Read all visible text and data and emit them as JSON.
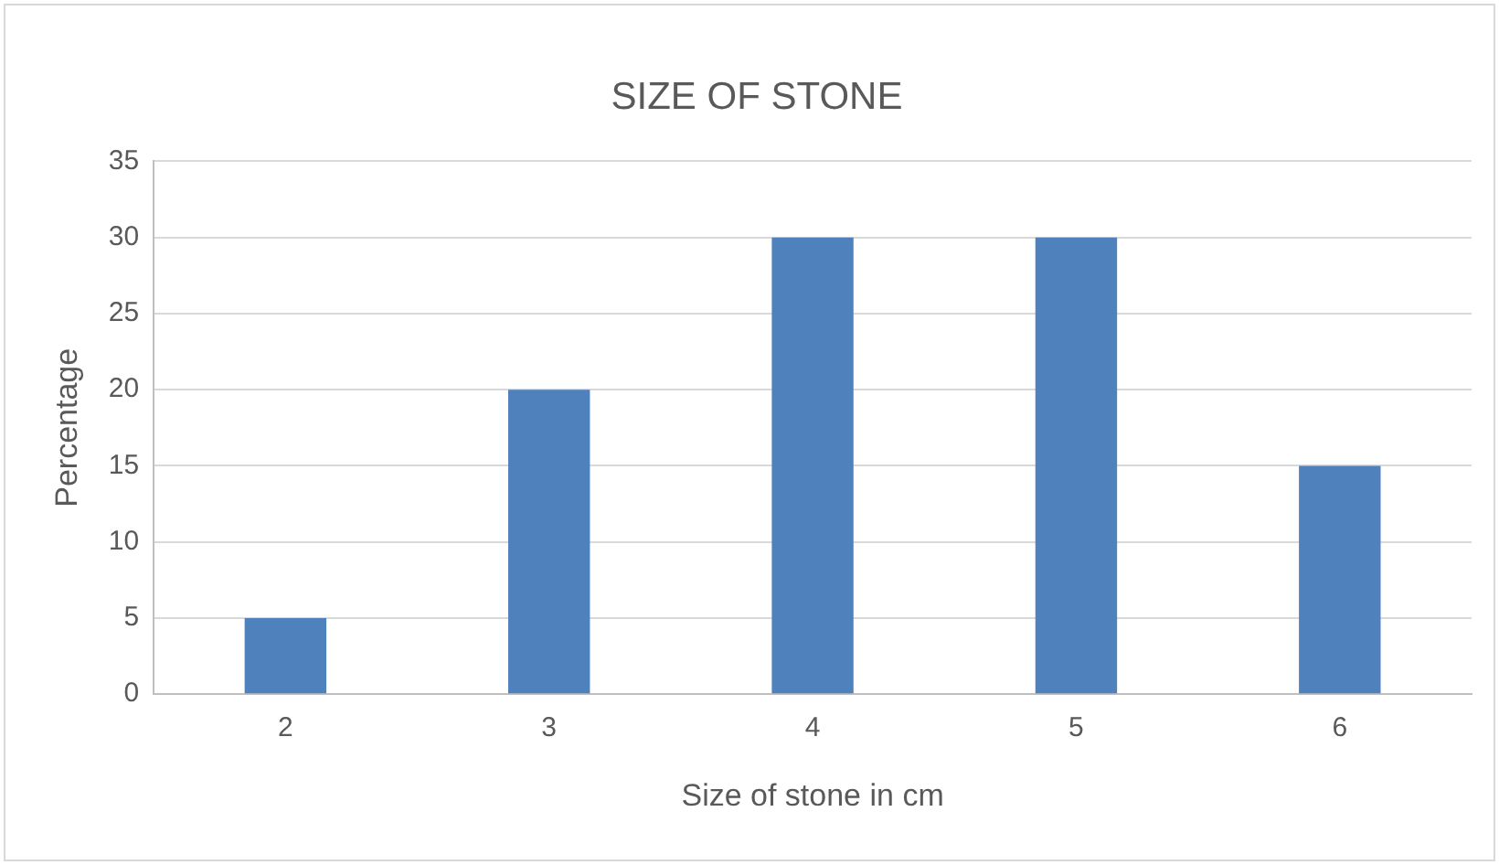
{
  "chart_data": {
    "type": "bar",
    "title": "SIZE OF STONE",
    "xlabel": "Size of stone in cm",
    "ylabel": "Percentage",
    "categories": [
      "2",
      "3",
      "4",
      "5",
      "6"
    ],
    "values": [
      5,
      20,
      30,
      30,
      15
    ],
    "color": "#4f81bd",
    "ylim": [
      0,
      35
    ],
    "yticks": [
      0,
      5,
      10,
      15,
      20,
      25,
      30,
      35
    ],
    "grid": "y",
    "legend": false
  }
}
